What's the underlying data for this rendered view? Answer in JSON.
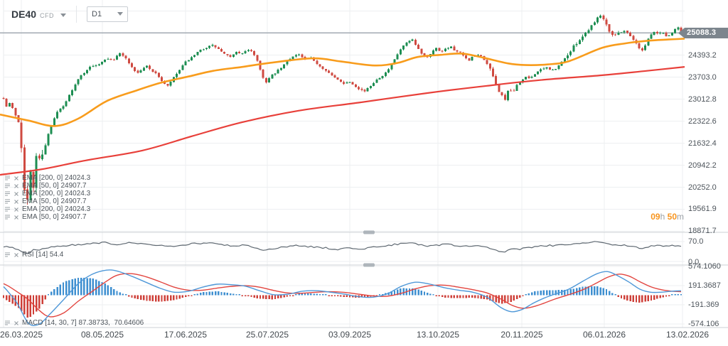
{
  "header": {
    "symbol": "DE40",
    "instrument_type": "CFD",
    "timeframe": "D1"
  },
  "indicators": {
    "ema_rows": [
      {
        "label": "EMA [200, 0] 24024.3"
      },
      {
        "label": "EMA [50, 0] 24907.7"
      },
      {
        "label": "EMA [200, 0] 24024.3"
      },
      {
        "label": "EMA [50, 0] 24907.7"
      },
      {
        "label": "EMA [200, 0] 24024.3"
      },
      {
        "label": "EMA [50, 0] 24907.7"
      }
    ],
    "rsi_label": "RSI [14] 54.4",
    "macd_label": "MACD [14, 30, 7] 87.38733,  70.64606"
  },
  "countdown": {
    "hours": "09",
    "h_unit": "h",
    "minutes": "50",
    "m_unit": "m"
  },
  "price_axis": {
    "current_price": "25088.3",
    "ticks": [
      "24393.2",
      "23703.0",
      "23012.8",
      "22322.6",
      "21632.4",
      "20942.2",
      "20252.0",
      "19561.9",
      "18871.7"
    ]
  },
  "rsi_axis": {
    "ticks": [
      "70.0",
      "0.0"
    ]
  },
  "macd_axis": {
    "ticks": [
      "574.1060",
      "191.3687",
      "-191.369",
      "-574.106"
    ]
  },
  "date_axis": {
    "ticks": [
      "26.03.2025",
      "08.05.2025",
      "17.06.2025",
      "25.07.2025",
      "03.09.2025",
      "13.10.2025",
      "20.11.2025",
      "06.01.2026",
      "13.02.2026"
    ]
  },
  "colors": {
    "candle_up": "#1d8e52",
    "candle_down": "#cf4a41",
    "ema50": "#f89c1c",
    "ema200": "#e8403a",
    "price_line": "#9aa3ab",
    "badge_bg": "#7c858d",
    "rsi_line": "#5d6770",
    "macd_line": "#4f98d8",
    "macd_signal": "#e2443e",
    "hist_up": "#3e8fd0",
    "hist_down": "#ce3f38",
    "countdown_accent": "#f7941d",
    "grid": "#edeff1",
    "divider": "#ccd1d5"
  },
  "chart_data": {
    "type": "candlestick",
    "symbol": "DE40 CFD",
    "timeframe": "D1",
    "x_range": [
      "26.03.2025",
      "13.02.2026"
    ],
    "price_ylim": [
      18525,
      25790
    ],
    "current_price": 25088.3,
    "candle_count": 228,
    "note": "paths are [x_px, value] anchors; x 5..958 spans the date range",
    "close_path": [
      [
        2,
        23350
      ],
      [
        8,
        22750
      ],
      [
        14,
        22900
      ],
      [
        20,
        22600
      ],
      [
        26,
        22300
      ],
      [
        30,
        21600
      ],
      [
        34,
        20300
      ],
      [
        38,
        19650
      ],
      [
        42,
        20900
      ],
      [
        46,
        19900
      ],
      [
        50,
        21300
      ],
      [
        56,
        21100
      ],
      [
        62,
        21500
      ],
      [
        70,
        22050
      ],
      [
        80,
        22600
      ],
      [
        90,
        22800
      ],
      [
        100,
        23250
      ],
      [
        112,
        23700
      ],
      [
        125,
        24000
      ],
      [
        138,
        24100
      ],
      [
        150,
        24300
      ],
      [
        160,
        24250
      ],
      [
        170,
        24480
      ],
      [
        178,
        24250
      ],
      [
        186,
        24000
      ],
      [
        193,
        23820
      ],
      [
        200,
        23950
      ],
      [
        207,
        24060
      ],
      [
        214,
        23900
      ],
      [
        222,
        23760
      ],
      [
        230,
        23500
      ],
      [
        236,
        23420
      ],
      [
        243,
        23650
      ],
      [
        252,
        23900
      ],
      [
        262,
        24200
      ],
      [
        272,
        24350
      ],
      [
        282,
        24550
      ],
      [
        292,
        24650
      ],
      [
        300,
        24700
      ],
      [
        308,
        24560
      ],
      [
        316,
        24420
      ],
      [
        324,
        24320
      ],
      [
        331,
        24500
      ],
      [
        338,
        24440
      ],
      [
        345,
        24500
      ],
      [
        352,
        24560
      ],
      [
        360,
        24340
      ],
      [
        368,
        23800
      ],
      [
        374,
        23520
      ],
      [
        380,
        23700
      ],
      [
        388,
        23850
      ],
      [
        396,
        24000
      ],
      [
        404,
        24200
      ],
      [
        412,
        24360
      ],
      [
        420,
        24420
      ],
      [
        428,
        24260
      ],
      [
        436,
        24310
      ],
      [
        444,
        24160
      ],
      [
        452,
        24010
      ],
      [
        460,
        23900
      ],
      [
        468,
        23720
      ],
      [
        476,
        23610
      ],
      [
        484,
        23510
      ],
      [
        492,
        23560
      ],
      [
        500,
        23420
      ],
      [
        508,
        23300
      ],
      [
        514,
        23260
      ],
      [
        520,
        23400
      ],
      [
        528,
        23600
      ],
      [
        536,
        23720
      ],
      [
        544,
        23860
      ],
      [
        552,
        24120
      ],
      [
        560,
        24450
      ],
      [
        568,
        24700
      ],
      [
        575,
        24820
      ],
      [
        580,
        24860
      ],
      [
        587,
        24620
      ],
      [
        594,
        24420
      ],
      [
        600,
        24310
      ],
      [
        608,
        24510
      ],
      [
        614,
        24610
      ],
      [
        620,
        24500
      ],
      [
        628,
        24610
      ],
      [
        634,
        24660
      ],
      [
        640,
        24510
      ],
      [
        648,
        24460
      ],
      [
        654,
        24310
      ],
      [
        660,
        24210
      ],
      [
        666,
        24360
      ],
      [
        672,
        24410
      ],
      [
        680,
        24300
      ],
      [
        686,
        24100
      ],
      [
        692,
        23800
      ],
      [
        698,
        23420
      ],
      [
        704,
        23180
      ],
      [
        710,
        22990
      ],
      [
        716,
        23320
      ],
      [
        722,
        23210
      ],
      [
        728,
        23500
      ],
      [
        734,
        23600
      ],
      [
        740,
        23700
      ],
      [
        746,
        23660
      ],
      [
        752,
        23810
      ],
      [
        758,
        23900
      ],
      [
        764,
        23960
      ],
      [
        770,
        24010
      ],
      [
        776,
        23910
      ],
      [
        782,
        23960
      ],
      [
        788,
        24110
      ],
      [
        794,
        24300
      ],
      [
        800,
        24420
      ],
      [
        808,
        24700
      ],
      [
        816,
        24900
      ],
      [
        824,
        25100
      ],
      [
        832,
        25320
      ],
      [
        840,
        25560
      ],
      [
        846,
        25660
      ],
      [
        852,
        25420
      ],
      [
        858,
        25120
      ],
      [
        864,
        25010
      ],
      [
        872,
        25110
      ],
      [
        878,
        25160
      ],
      [
        884,
        25060
      ],
      [
        890,
        24910
      ],
      [
        896,
        24710
      ],
      [
        902,
        24510
      ],
      [
        908,
        24720
      ],
      [
        914,
        25010
      ],
      [
        920,
        25110
      ],
      [
        926,
        25060
      ],
      [
        932,
        25110
      ],
      [
        938,
        24960
      ],
      [
        944,
        25060
      ],
      [
        950,
        25210
      ],
      [
        956,
        25310
      ],
      [
        960,
        25088.3
      ]
    ],
    "ema50": {
      "period": 50,
      "last": 24907.7,
      "path": [
        [
          0,
          22530
        ],
        [
          40,
          22340
        ],
        [
          77,
          22170
        ],
        [
          110,
          22400
        ],
        [
          150,
          22950
        ],
        [
          193,
          23290
        ],
        [
          227,
          23530
        ],
        [
          265,
          23720
        ],
        [
          300,
          23900
        ],
        [
          340,
          24020
        ],
        [
          380,
          24150
        ],
        [
          440,
          24290
        ],
        [
          480,
          24190
        ],
        [
          527,
          24065
        ],
        [
          560,
          24150
        ],
        [
          587,
          24330
        ],
        [
          620,
          24400
        ],
        [
          650,
          24440
        ],
        [
          680,
          24310
        ],
        [
          715,
          24130
        ],
        [
          740,
          24080
        ],
        [
          770,
          24100
        ],
        [
          800,
          24200
        ],
        [
          847,
          24620
        ],
        [
          880,
          24760
        ],
        [
          913,
          24845
        ],
        [
          940,
          24880
        ],
        [
          963,
          24908
        ]
      ]
    },
    "ema200": {
      "period": 200,
      "last": 24024.3,
      "path": [
        [
          0,
          20640
        ],
        [
          60,
          20820
        ],
        [
          120,
          21090
        ],
        [
          200,
          21400
        ],
        [
          270,
          21850
        ],
        [
          340,
          22285
        ],
        [
          420,
          22650
        ],
        [
          507,
          22910
        ],
        [
          600,
          23200
        ],
        [
          685,
          23430
        ],
        [
          760,
          23610
        ],
        [
          847,
          23760
        ],
        [
          910,
          23900
        ],
        [
          963,
          24024
        ]
      ]
    },
    "rsi": {
      "period": 14,
      "last": 54.4,
      "axis_top": 70.0,
      "axis_bottom": 0.0,
      "path": [
        [
          5,
          52
        ],
        [
          15,
          49
        ],
        [
          25,
          43
        ],
        [
          33,
          30
        ],
        [
          40,
          25
        ],
        [
          46,
          41
        ],
        [
          52,
          38
        ],
        [
          62,
          47
        ],
        [
          75,
          52
        ],
        [
          90,
          55
        ],
        [
          105,
          58
        ],
        [
          120,
          62
        ],
        [
          135,
          64
        ],
        [
          150,
          66
        ],
        [
          163,
          59
        ],
        [
          180,
          65
        ],
        [
          195,
          64
        ],
        [
          210,
          60
        ],
        [
          225,
          57
        ],
        [
          240,
          54
        ],
        [
          255,
          58
        ],
        [
          270,
          62
        ],
        [
          285,
          64
        ],
        [
          300,
          65
        ],
        [
          315,
          58
        ],
        [
          330,
          55
        ],
        [
          345,
          57
        ],
        [
          360,
          48
        ],
        [
          370,
          42
        ],
        [
          385,
          46
        ],
        [
          400,
          52
        ],
        [
          415,
          56
        ],
        [
          430,
          53
        ],
        [
          445,
          50
        ],
        [
          460,
          47
        ],
        [
          467,
          40
        ],
        [
          480,
          45
        ],
        [
          495,
          46
        ],
        [
          510,
          44
        ],
        [
          525,
          50
        ],
        [
          540,
          54
        ],
        [
          555,
          60
        ],
        [
          570,
          64
        ],
        [
          580,
          66
        ],
        [
          590,
          58
        ],
        [
          600,
          54
        ],
        [
          615,
          58
        ],
        [
          630,
          60
        ],
        [
          645,
          55
        ],
        [
          660,
          52
        ],
        [
          675,
          54
        ],
        [
          690,
          45
        ],
        [
          700,
          38
        ],
        [
          710,
          35
        ],
        [
          720,
          44
        ],
        [
          730,
          42
        ],
        [
          745,
          50
        ],
        [
          760,
          54
        ],
        [
          775,
          56
        ],
        [
          790,
          57
        ],
        [
          805,
          62
        ],
        [
          820,
          66
        ],
        [
          835,
          69
        ],
        [
          845,
          70
        ],
        [
          855,
          60
        ],
        [
          865,
          57
        ],
        [
          875,
          58
        ],
        [
          885,
          55
        ],
        [
          895,
          50
        ],
        [
          905,
          46
        ],
        [
          915,
          55
        ],
        [
          925,
          57
        ],
        [
          935,
          54
        ],
        [
          945,
          56
        ],
        [
          958,
          54.4
        ]
      ]
    },
    "macd": {
      "params": [
        14,
        30,
        7
      ],
      "last_macd": 87.38733,
      "last_signal": 70.64606,
      "axis_ticks": [
        574.106,
        191.3687,
        -191.369,
        -574.106
      ],
      "macd_path": [
        [
          5,
          170
        ],
        [
          12,
          60
        ],
        [
          25,
          -180
        ],
        [
          40,
          -560
        ],
        [
          55,
          -580
        ],
        [
          70,
          -380
        ],
        [
          90,
          -80
        ],
        [
          110,
          230
        ],
        [
          130,
          420
        ],
        [
          150,
          500
        ],
        [
          165,
          480
        ],
        [
          185,
          380
        ],
        [
          205,
          260
        ],
        [
          225,
          140
        ],
        [
          245,
          60
        ],
        [
          265,
          80
        ],
        [
          285,
          160
        ],
        [
          305,
          220
        ],
        [
          325,
          210
        ],
        [
          345,
          180
        ],
        [
          365,
          90
        ],
        [
          385,
          10
        ],
        [
          405,
          20
        ],
        [
          425,
          80
        ],
        [
          445,
          90
        ],
        [
          465,
          60
        ],
        [
          485,
          20
        ],
        [
          505,
          -30
        ],
        [
          525,
          -40
        ],
        [
          545,
          30
        ],
        [
          565,
          180
        ],
        [
          585,
          260
        ],
        [
          605,
          220
        ],
        [
          625,
          150
        ],
        [
          645,
          100
        ],
        [
          665,
          60
        ],
        [
          685,
          -40
        ],
        [
          705,
          -250
        ],
        [
          720,
          -330
        ],
        [
          735,
          -280
        ],
        [
          750,
          -160
        ],
        [
          765,
          -60
        ],
        [
          780,
          20
        ],
        [
          800,
          120
        ],
        [
          820,
          280
        ],
        [
          840,
          430
        ],
        [
          855,
          470
        ],
        [
          870,
          380
        ],
        [
          885,
          260
        ],
        [
          900,
          120
        ],
        [
          915,
          60
        ],
        [
          930,
          60
        ],
        [
          945,
          80
        ],
        [
          958,
          87.38733
        ]
      ],
      "signal_path": [
        [
          5,
          230
        ],
        [
          12,
          180
        ],
        [
          25,
          60
        ],
        [
          40,
          -90
        ],
        [
          55,
          -300
        ],
        [
          70,
          -430
        ],
        [
          90,
          -350
        ],
        [
          110,
          -120
        ],
        [
          130,
          80
        ],
        [
          150,
          280
        ],
        [
          165,
          400
        ],
        [
          185,
          430
        ],
        [
          205,
          370
        ],
        [
          225,
          270
        ],
        [
          245,
          160
        ],
        [
          265,
          100
        ],
        [
          285,
          100
        ],
        [
          305,
          140
        ],
        [
          325,
          175
        ],
        [
          345,
          190
        ],
        [
          365,
          160
        ],
        [
          385,
          95
        ],
        [
          405,
          45
        ],
        [
          425,
          40
        ],
        [
          445,
          60
        ],
        [
          465,
          70
        ],
        [
          485,
          55
        ],
        [
          505,
          20
        ],
        [
          525,
          -15
        ],
        [
          545,
          -20
        ],
        [
          565,
          40
        ],
        [
          585,
          130
        ],
        [
          605,
          190
        ],
        [
          625,
          200
        ],
        [
          645,
          160
        ],
        [
          665,
          110
        ],
        [
          685,
          45
        ],
        [
          705,
          -80
        ],
        [
          720,
          -200
        ],
        [
          735,
          -260
        ],
        [
          750,
          -230
        ],
        [
          765,
          -160
        ],
        [
          780,
          -80
        ],
        [
          800,
          10
        ],
        [
          820,
          110
        ],
        [
          840,
          250
        ],
        [
          855,
          360
        ],
        [
          870,
          420
        ],
        [
          885,
          380
        ],
        [
          900,
          270
        ],
        [
          915,
          170
        ],
        [
          930,
          110
        ],
        [
          945,
          80
        ],
        [
          958,
          70.64606
        ]
      ]
    }
  }
}
